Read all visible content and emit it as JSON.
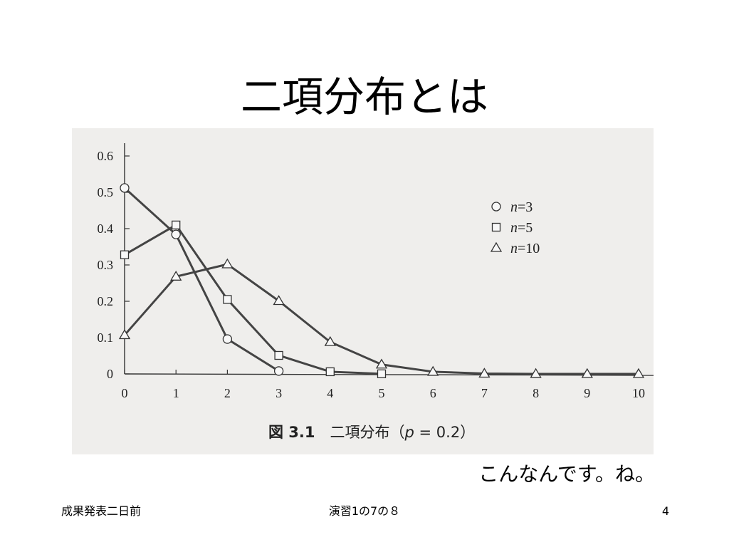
{
  "slide": {
    "title": "二項分布とは",
    "remark": "こんなんです。ね。",
    "footer_left": "成果発表二日前",
    "footer_center": "演習1の7の８",
    "page_number": "4"
  },
  "chart_data": {
    "type": "line",
    "title": "",
    "caption_fig": "図 3.1",
    "caption_text": "二項分布（",
    "caption_param": "p",
    "caption_value": " = 0.2）",
    "xlabel": "",
    "ylabel": "",
    "xlim": [
      0,
      10
    ],
    "ylim": [
      0,
      0.6
    ],
    "x_ticks": [
      "0",
      "1",
      "2",
      "3",
      "4",
      "5",
      "6",
      "7",
      "8",
      "9",
      "10"
    ],
    "y_ticks": [
      "0",
      "0.1",
      "0.2",
      "0.3",
      "0.4",
      "0.5",
      "0.6"
    ],
    "grid": false,
    "legend_position": "top-right",
    "series": [
      {
        "name": "n=3",
        "legend_var": "n",
        "legend_val": "=3",
        "marker": "circle",
        "x": [
          0,
          1,
          2,
          3
        ],
        "values": [
          0.512,
          0.384,
          0.096,
          0.008
        ]
      },
      {
        "name": "n=5",
        "legend_var": "n",
        "legend_val": "=5",
        "marker": "square",
        "x": [
          0,
          1,
          2,
          3,
          4,
          5
        ],
        "values": [
          0.328,
          0.41,
          0.205,
          0.051,
          0.006,
          0.0003
        ]
      },
      {
        "name": "n=10",
        "legend_var": "n",
        "legend_val": "=10",
        "marker": "triangle",
        "x": [
          0,
          1,
          2,
          3,
          4,
          5,
          6,
          7,
          8,
          9,
          10
        ],
        "values": [
          0.107,
          0.268,
          0.302,
          0.201,
          0.088,
          0.026,
          0.006,
          0.001,
          0.0001,
          0.0,
          0.0
        ]
      }
    ],
    "colors": {
      "line": "#444444",
      "marker_fill": "#f8f8f8",
      "marker_stroke": "#333333",
      "text": "#222222"
    }
  }
}
